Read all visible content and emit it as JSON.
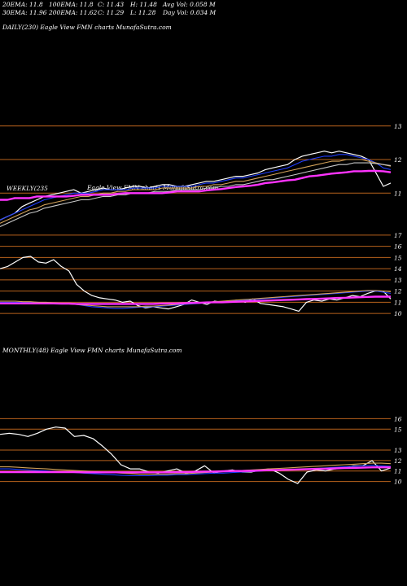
{
  "header": {
    "row1": [
      "20EMA: 11.8",
      "100EMA: 11.8",
      "C: 11.43",
      "H: 11.48",
      "Avg Vol: 0.058  M"
    ],
    "row2": [
      "30EMA: 11.96",
      "200EMA: 11.62",
      "C: 11.29",
      "L: 11.28",
      "Day Vol: 0.034  M"
    ]
  },
  "panels": {
    "daily_title": "DAILY(230) Eagle  View  FMN  charts MunafaSutra.com",
    "weekly_title": "WEEKLY(235",
    "weekly_title_right": "Eagle  View  FMN  charts MunafaSutra.com",
    "monthly_title": "MONTHLY(48) Eagle  View  FMN  charts MunafaSutra.com"
  },
  "colors": {
    "background": "#000000",
    "price": "#ffffff",
    "hline": "#b8621c",
    "ema_short": "#1e3cff",
    "ema_fast": "#5a78ff",
    "ema_mid": "#d4a35a",
    "ema_slow": "#c9c9c9",
    "ema_long": "#ff33ff"
  },
  "chart_data": [
    {
      "type": "line",
      "title": "DAILY(230) Eagle  View  FMN  charts MunafaSutra.com",
      "y_ticks": [
        13,
        12,
        11
      ],
      "y_range": [
        10.4,
        13.6
      ],
      "series": [
        {
          "color": "#ffffff",
          "values": [
            10.2,
            10.3,
            10.4,
            10.6,
            10.7,
            10.8,
            10.9,
            10.95,
            11.0,
            11.05,
            11.1,
            11.0,
            11.05,
            11.1,
            11.15,
            11.1,
            11.1,
            11.15,
            11.2,
            11.2,
            11.15,
            11.2,
            11.25,
            11.25,
            11.2,
            11.2,
            11.25,
            11.3,
            11.35,
            11.35,
            11.4,
            11.45,
            11.5,
            11.5,
            11.55,
            11.6,
            11.7,
            11.75,
            11.8,
            11.85,
            12.0,
            12.1,
            12.15,
            12.2,
            12.25,
            12.2,
            12.25,
            12.2,
            12.15,
            12.1,
            12.0,
            11.6,
            11.2,
            11.3
          ]
        },
        {
          "color": "#1e3cff",
          "values": [
            10.2,
            10.3,
            10.4,
            10.5,
            10.6,
            10.7,
            10.8,
            10.85,
            10.9,
            10.95,
            11.0,
            11.0,
            11.0,
            11.05,
            11.1,
            11.1,
            11.1,
            11.1,
            11.15,
            11.15,
            11.15,
            11.15,
            11.2,
            11.2,
            11.2,
            11.2,
            11.2,
            11.25,
            11.3,
            11.3,
            11.35,
            11.4,
            11.45,
            11.45,
            11.5,
            11.55,
            11.6,
            11.65,
            11.7,
            11.75,
            11.85,
            11.95,
            12.0,
            12.05,
            12.1,
            12.1,
            12.15,
            12.15,
            12.1,
            12.05,
            12.0,
            11.9,
            11.75,
            11.7
          ]
        },
        {
          "color": "#d4a35a",
          "values": [
            10.1,
            10.2,
            10.3,
            10.4,
            10.5,
            10.55,
            10.65,
            10.7,
            10.75,
            10.8,
            10.85,
            10.9,
            10.9,
            10.95,
            11.0,
            11.0,
            11.05,
            11.05,
            11.1,
            11.1,
            11.1,
            11.1,
            11.15,
            11.15,
            11.15,
            11.15,
            11.15,
            11.2,
            11.2,
            11.25,
            11.25,
            11.3,
            11.35,
            11.35,
            11.4,
            11.45,
            11.5,
            11.55,
            11.6,
            11.65,
            11.7,
            11.75,
            11.8,
            11.85,
            11.9,
            11.95,
            11.95,
            12.0,
            12.0,
            12.0,
            11.95,
            11.9,
            11.85,
            11.8
          ]
        },
        {
          "color": "#c9c9c9",
          "values": [
            10.0,
            10.1,
            10.2,
            10.3,
            10.4,
            10.45,
            10.55,
            10.6,
            10.65,
            10.7,
            10.75,
            10.8,
            10.8,
            10.85,
            10.9,
            10.9,
            10.95,
            10.95,
            11.0,
            11.0,
            11.0,
            11.05,
            11.05,
            11.05,
            11.1,
            11.1,
            11.1,
            11.1,
            11.15,
            11.15,
            11.2,
            11.2,
            11.25,
            11.25,
            11.3,
            11.35,
            11.4,
            11.4,
            11.45,
            11.5,
            11.55,
            11.6,
            11.65,
            11.7,
            11.75,
            11.8,
            11.85,
            11.85,
            11.9,
            11.9,
            11.9,
            11.88,
            11.85,
            11.82
          ]
        },
        {
          "color": "#ff33ff",
          "values": [
            10.8,
            10.8,
            10.85,
            10.85,
            10.85,
            10.9,
            10.9,
            10.9,
            10.9,
            10.9,
            10.92,
            10.95,
            10.95,
            10.95,
            10.95,
            10.95,
            10.98,
            11.0,
            11.0,
            11.0,
            11.0,
            11.0,
            11.0,
            11.02,
            11.05,
            11.05,
            11.05,
            11.05,
            11.08,
            11.1,
            11.12,
            11.15,
            11.18,
            11.2,
            11.22,
            11.25,
            11.3,
            11.32,
            11.35,
            11.38,
            11.4,
            11.45,
            11.5,
            11.52,
            11.55,
            11.58,
            11.6,
            11.62,
            11.65,
            11.65,
            11.66,
            11.66,
            11.65,
            11.62
          ]
        }
      ]
    },
    {
      "type": "line",
      "title": "WEEKLY(235",
      "y_ticks": [
        17,
        16,
        15,
        14,
        13,
        12,
        11,
        10
      ],
      "y_range": [
        9.5,
        17.5
      ],
      "series": [
        {
          "color": "#ffffff",
          "values": [
            14.0,
            14.2,
            14.6,
            15.0,
            15.1,
            14.6,
            14.5,
            14.8,
            14.2,
            13.8,
            12.6,
            12.0,
            11.6,
            11.4,
            11.3,
            11.2,
            11.0,
            11.1,
            10.7,
            10.5,
            10.6,
            10.5,
            10.4,
            10.6,
            10.8,
            11.2,
            11.0,
            10.8,
            11.1,
            11.0,
            11.1,
            11.2,
            11.0,
            11.3,
            10.9,
            10.8,
            10.7,
            10.6,
            10.4,
            10.2,
            11.0,
            11.2,
            11.1,
            11.3,
            11.2,
            11.4,
            11.6,
            11.5,
            11.8,
            12.0,
            12.0,
            11.3
          ]
        },
        {
          "color": "#1e3cff",
          "values": [
            11.0,
            11.0,
            11.0,
            11.0,
            11.0,
            11.0,
            10.95,
            10.95,
            10.9,
            10.9,
            10.8,
            10.7,
            10.6,
            10.55,
            10.5,
            10.45,
            10.45,
            10.5,
            10.55,
            10.6,
            10.6,
            10.65,
            10.7,
            10.75,
            10.8,
            10.85,
            10.9,
            10.95,
            11.0,
            11.05,
            11.1,
            11.15,
            11.2,
            11.25,
            11.3,
            11.35,
            11.4,
            11.45,
            11.5,
            11.55,
            11.6,
            11.65,
            11.7,
            11.75,
            11.8,
            11.85,
            11.9,
            11.95,
            12.0,
            12.0,
            11.9,
            11.8
          ]
        },
        {
          "color": "#d4a35a",
          "values": [
            11.1,
            11.1,
            11.1,
            11.05,
            11.05,
            11.0,
            11.0,
            10.95,
            10.9,
            10.85,
            10.8,
            10.75,
            10.7,
            10.65,
            10.6,
            10.6,
            10.6,
            10.6,
            10.6,
            10.65,
            10.65,
            10.7,
            10.75,
            10.8,
            10.85,
            10.9,
            10.95,
            11.0,
            11.05,
            11.1,
            11.15,
            11.2,
            11.25,
            11.3,
            11.35,
            11.4,
            11.45,
            11.5,
            11.55,
            11.6,
            11.65,
            11.7,
            11.75,
            11.8,
            11.85,
            11.9,
            11.95,
            12.0,
            12.05,
            12.05,
            12.0,
            11.95
          ]
        },
        {
          "color": "#ff33ff",
          "values": [
            10.9,
            10.9,
            10.9,
            10.9,
            10.9,
            10.9,
            10.9,
            10.9,
            10.88,
            10.88,
            10.85,
            10.85,
            10.85,
            10.85,
            10.85,
            10.85,
            10.85,
            10.85,
            10.85,
            10.85,
            10.85,
            10.88,
            10.9,
            10.9,
            10.92,
            10.95,
            10.95,
            10.98,
            11.0,
            11.0,
            11.02,
            11.05,
            11.08,
            11.1,
            11.12,
            11.15,
            11.18,
            11.2,
            11.22,
            11.25,
            11.28,
            11.3,
            11.32,
            11.35,
            11.38,
            11.4,
            11.42,
            11.45,
            11.48,
            11.5,
            11.5,
            11.5
          ]
        }
      ]
    },
    {
      "type": "line",
      "title": "MONTHLY(48) Eagle  View  FMN  charts MunafaSutra.com",
      "y_ticks": [
        16,
        15,
        13,
        12,
        11,
        10
      ],
      "y_range": [
        9.5,
        16.5
      ],
      "series": [
        {
          "color": "#ffffff",
          "values": [
            14.5,
            14.6,
            14.5,
            14.3,
            14.6,
            15.0,
            15.2,
            15.1,
            14.3,
            14.4,
            14.1,
            13.4,
            12.6,
            11.6,
            11.2,
            11.2,
            10.9,
            10.8,
            11.0,
            11.2,
            10.8,
            11.0,
            11.5,
            10.8,
            11.0,
            11.1,
            10.9,
            10.9,
            11.1,
            11.2,
            10.8,
            10.2,
            9.8,
            10.9,
            11.1,
            11.0,
            11.2,
            11.3,
            11.5,
            11.5,
            12.0,
            11.0,
            11.3
          ]
        },
        {
          "color": "#1e3cff",
          "values": [
            11.2,
            11.2,
            11.15,
            11.1,
            11.05,
            11.0,
            10.95,
            10.9,
            10.85,
            10.8,
            10.75,
            10.7,
            10.65,
            10.6,
            10.55,
            10.55,
            10.55,
            10.6,
            10.6,
            10.65,
            10.65,
            10.7,
            10.75,
            10.8,
            10.8,
            10.85,
            10.9,
            10.95,
            11.0,
            11.05,
            11.1,
            11.1,
            11.15,
            11.2,
            11.25,
            11.3,
            11.35,
            11.4,
            11.45,
            11.5,
            11.55,
            11.5,
            11.45
          ]
        },
        {
          "color": "#d4a35a",
          "values": [
            11.4,
            11.4,
            11.35,
            11.3,
            11.25,
            11.2,
            11.15,
            11.1,
            11.05,
            11.0,
            10.95,
            10.9,
            10.85,
            10.8,
            10.75,
            10.7,
            10.7,
            10.7,
            10.7,
            10.75,
            10.75,
            10.8,
            10.85,
            10.9,
            10.95,
            11.0,
            11.05,
            11.1,
            11.15,
            11.2,
            11.25,
            11.3,
            11.35,
            11.4,
            11.45,
            11.5,
            11.55,
            11.6,
            11.65,
            11.7,
            11.75,
            11.75,
            11.7
          ]
        },
        {
          "color": "#ff33ff",
          "values": [
            10.9,
            10.9,
            10.9,
            10.9,
            10.9,
            10.9,
            10.9,
            10.9,
            10.9,
            10.88,
            10.88,
            10.88,
            10.88,
            10.88,
            10.88,
            10.88,
            10.88,
            10.88,
            10.88,
            10.9,
            10.9,
            10.92,
            10.95,
            10.95,
            10.98,
            11.0,
            11.0,
            11.02,
            11.05,
            11.08,
            11.1,
            11.12,
            11.15,
            11.18,
            11.2,
            11.22,
            11.25,
            11.28,
            11.3,
            11.32,
            11.35,
            11.35,
            11.35
          ]
        }
      ]
    }
  ]
}
